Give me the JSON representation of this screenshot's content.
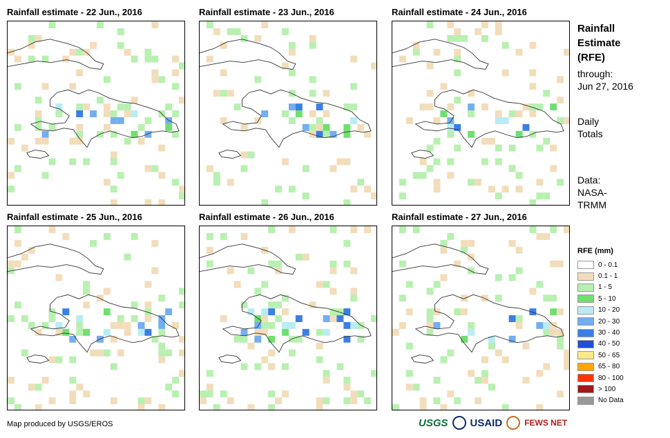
{
  "panels": [
    {
      "title": "Rainfall estimate - 22 Jun., 2016"
    },
    {
      "title": "Rainfall estimate - 23 Jun., 2016"
    },
    {
      "title": "Rainfall estimate - 24 Jun., 2016"
    },
    {
      "title": "Rainfall estimate - 25 Jun., 2016"
    },
    {
      "title": "Rainfall estimate - 26 Jun., 2016"
    },
    {
      "title": "Rainfall estimate - 27 Jun., 2016"
    }
  ],
  "side": {
    "title_lines": [
      "Rainfall",
      "Estimate",
      "(RFE)"
    ],
    "through_lines": [
      "through:",
      "Jun 27, 2016"
    ],
    "totals_lines": [
      "Daily",
      "Totals"
    ],
    "data_lines": [
      "Data:",
      "NASA-",
      "TRMM"
    ]
  },
  "legend": {
    "title": "RFE (mm)",
    "items": [
      {
        "label": "0 - 0.1",
        "color": "#ffffff"
      },
      {
        "label": "0.1 - 1",
        "color": "#f2ddbb"
      },
      {
        "label": "1 - 5",
        "color": "#b8f0b0"
      },
      {
        "label": "5 - 10",
        "color": "#6fe06f"
      },
      {
        "label": "10 - 20",
        "color": "#b8ecf2"
      },
      {
        "label": "20 - 30",
        "color": "#72aef0"
      },
      {
        "label": "30 - 40",
        "color": "#3b7ee6"
      },
      {
        "label": "40 - 50",
        "color": "#1f4fd6"
      },
      {
        "label": "50 - 65",
        "color": "#ffe98a"
      },
      {
        "label": "65 - 80",
        "color": "#ffa500"
      },
      {
        "label": "80 - 100",
        "color": "#ff3300"
      },
      {
        "label": "> 100",
        "color": "#a01818"
      },
      {
        "label": "No Data",
        "color": "#999999"
      }
    ]
  },
  "footer": {
    "text": "Map produced by USGS/EROS"
  },
  "logos": {
    "usgs": "USGS",
    "usaid": "USAID",
    "fews": "FEWS NET"
  }
}
